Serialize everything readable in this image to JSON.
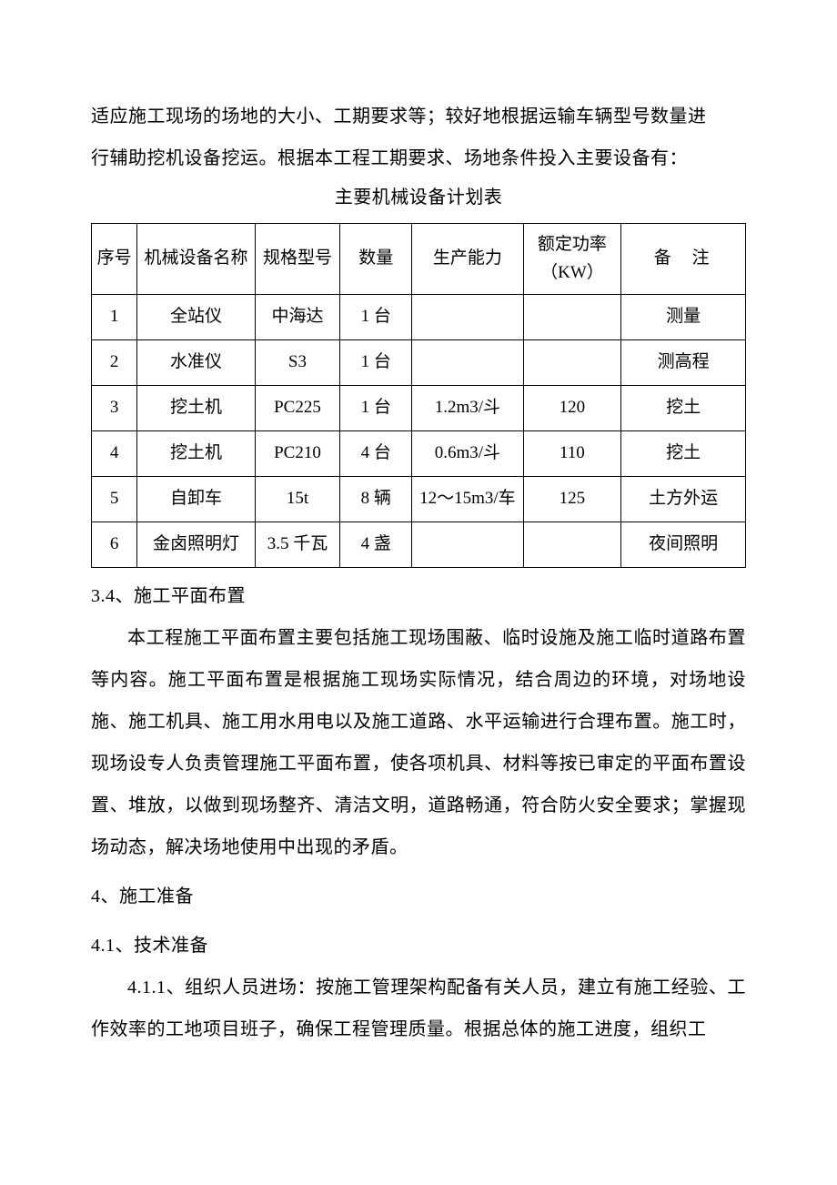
{
  "intro": {
    "line1": "适应施工现场的场地的大小、工期要求等；较好地根据运输车辆型号数量进",
    "line2": "行辅助挖机设备挖运。根据本工程工期要求、场地条件投入主要设备有：",
    "table_title": "主要机械设备计划表"
  },
  "table": {
    "headers": {
      "seq": "序号",
      "name": "机械设备名称",
      "model": "规格型号",
      "qty": "数量",
      "capacity": "生产能力",
      "power_line1": "额定功率",
      "power_line2": "（KW）",
      "note": "备注"
    },
    "rows": [
      {
        "seq": "1",
        "name": "全站仪",
        "model": "中海达",
        "qty": "1 台",
        "capacity": "",
        "power": "",
        "note": "测量"
      },
      {
        "seq": "2",
        "name": "水准仪",
        "model": "S3",
        "qty": "1 台",
        "capacity": "",
        "power": "",
        "note": "测高程"
      },
      {
        "seq": "3",
        "name": "挖土机",
        "model": "PC225",
        "qty": "1 台",
        "capacity": "1.2m3/斗",
        "power": "120",
        "note": "挖土"
      },
      {
        "seq": "4",
        "name": "挖土机",
        "model": "PC210",
        "qty": "4 台",
        "capacity": "0.6m3/斗",
        "power": "110",
        "note": "挖土"
      },
      {
        "seq": "5",
        "name": "自卸车",
        "model": "15t",
        "qty": "8 辆",
        "capacity": "12～15m3/车",
        "power": "125",
        "note": "土方外运"
      },
      {
        "seq": "6",
        "name": "金卤照明灯",
        "model": "3.5 千瓦",
        "qty": "4 盏",
        "capacity": "",
        "power": "",
        "note": "夜间照明"
      }
    ]
  },
  "section_3_4": {
    "heading": "3.4、施工平面布置",
    "body": "本工程施工平面布置主要包括施工现场围蔽、临时设施及施工临时道路布置等内容。施工平面布置是根据施工现场实际情况，结合周边的环境，对场地设施、施工机具、施工用水用电以及施工道路、水平运输进行合理布置。施工时，现场设专人负责管理施工平面布置，使各项机具、材料等按已审定的平面布置设置、堆放，以做到现场整齐、清洁文明，道路畅通，符合防火安全要求；掌握现场动态，解决场地使用中出现的矛盾。"
  },
  "section_4": {
    "heading": "4、施工准备"
  },
  "section_4_1": {
    "heading": "4.1、技术准备",
    "para1": "4.1.1、组织人员进场：按施工管理架构配备有关人员，建立有施工经验、工作效率的工地项目班子，确保工程管理质量。根据总体的施工进度，组织工"
  }
}
